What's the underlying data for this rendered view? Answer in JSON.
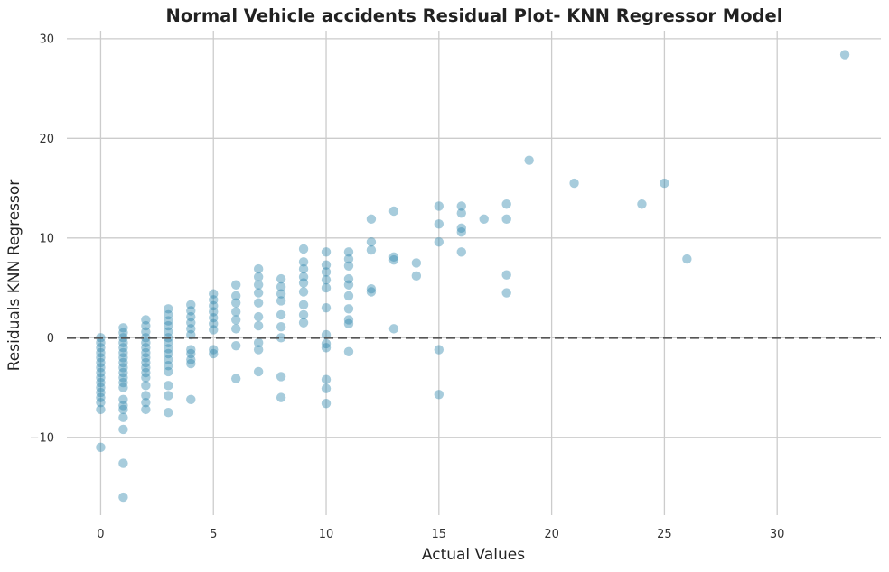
{
  "chart_data": {
    "type": "scatter",
    "title": "Normal Vehicle accidents Residual Plot- KNN Regressor Model",
    "xlabel": "Actual Values",
    "ylabel": "Residuals KNN Regressor",
    "xlim": [
      -1.5,
      34.6
    ],
    "ylim": [
      -17.8,
      30.8
    ],
    "x_ticks": [
      0,
      5,
      10,
      15,
      20,
      25,
      30
    ],
    "y_ticks": [
      -10,
      0,
      10,
      20,
      30
    ],
    "x_tick_labels": [
      "0",
      "5",
      "10",
      "15",
      "20",
      "25",
      "30"
    ],
    "y_tick_labels": [
      "−10",
      "0",
      "10",
      "20",
      "30"
    ],
    "grid": true,
    "reference_line": {
      "y": 0,
      "style": "dashed",
      "color": "#555555"
    },
    "point_color": "#2e86ab",
    "point_opacity": 0.42,
    "series": [
      {
        "points": [
          [
            0,
            0
          ],
          [
            0,
            -0.5
          ],
          [
            0,
            -1
          ],
          [
            0,
            -1.5
          ],
          [
            0,
            -2
          ],
          [
            0,
            -2.5
          ],
          [
            0,
            -3
          ],
          [
            0,
            -3.5
          ],
          [
            0,
            -4
          ],
          [
            0,
            -4.5
          ],
          [
            0,
            -5
          ],
          [
            0,
            -5.5
          ],
          [
            0,
            -6
          ],
          [
            0,
            -6.5
          ],
          [
            0,
            -7.2
          ],
          [
            0,
            -11
          ],
          [
            1,
            1
          ],
          [
            1,
            0.5
          ],
          [
            1,
            0
          ],
          [
            1,
            -0.5
          ],
          [
            1,
            -1
          ],
          [
            1,
            -1.5
          ],
          [
            1,
            -2
          ],
          [
            1,
            -2.5
          ],
          [
            1,
            -3
          ],
          [
            1,
            -3.5
          ],
          [
            1,
            -4
          ],
          [
            1,
            -4.5
          ],
          [
            1,
            -5
          ],
          [
            1,
            -6.2
          ],
          [
            1,
            -6.8
          ],
          [
            1,
            -7.2
          ],
          [
            1,
            -8
          ],
          [
            1,
            -9.2
          ],
          [
            1,
            -12.6
          ],
          [
            1,
            -16
          ],
          [
            2,
            1.8
          ],
          [
            2,
            1.2
          ],
          [
            2,
            0.6
          ],
          [
            2,
            0
          ],
          [
            2,
            -0.5
          ],
          [
            2,
            -1
          ],
          [
            2,
            -1.5
          ],
          [
            2,
            -2
          ],
          [
            2,
            -2.5
          ],
          [
            2,
            -3
          ],
          [
            2,
            -3.5
          ],
          [
            2,
            -4
          ],
          [
            2,
            -4.8
          ],
          [
            2,
            -5.8
          ],
          [
            2,
            -6.5
          ],
          [
            2,
            -7.2
          ],
          [
            3,
            2.9
          ],
          [
            3,
            2.3
          ],
          [
            3,
            1.7
          ],
          [
            3,
            1.2
          ],
          [
            3,
            0.6
          ],
          [
            3,
            0
          ],
          [
            3,
            -0.5
          ],
          [
            3,
            -1.1
          ],
          [
            3,
            -1.6
          ],
          [
            3,
            -2.2
          ],
          [
            3,
            -2.8
          ],
          [
            3,
            -3.4
          ],
          [
            3,
            -4.8
          ],
          [
            3,
            -5.8
          ],
          [
            3,
            -7.5
          ],
          [
            4,
            3.3
          ],
          [
            4,
            2.7
          ],
          [
            4,
            2.1
          ],
          [
            4,
            1.5
          ],
          [
            4,
            0.9
          ],
          [
            4,
            0.3
          ],
          [
            4,
            -1.2
          ],
          [
            4,
            -1.6
          ],
          [
            4,
            -2.2
          ],
          [
            4,
            -2.6
          ],
          [
            4,
            -6.2
          ],
          [
            5,
            4.4
          ],
          [
            5,
            3.8
          ],
          [
            5,
            3.2
          ],
          [
            5,
            2.6
          ],
          [
            5,
            2
          ],
          [
            5,
            1.4
          ],
          [
            5,
            0.8
          ],
          [
            5,
            -1.2
          ],
          [
            5,
            -1.6
          ],
          [
            6,
            5.3
          ],
          [
            6,
            4.2
          ],
          [
            6,
            3.5
          ],
          [
            6,
            2.6
          ],
          [
            6,
            1.8
          ],
          [
            6,
            0.9
          ],
          [
            6,
            -0.8
          ],
          [
            6,
            -4.1
          ],
          [
            7,
            6.9
          ],
          [
            7,
            6.1
          ],
          [
            7,
            5.3
          ],
          [
            7,
            4.5
          ],
          [
            7,
            3.5
          ],
          [
            7,
            2.1
          ],
          [
            7,
            1.2
          ],
          [
            7,
            -0.5
          ],
          [
            7,
            -1.2
          ],
          [
            7,
            -3.4
          ],
          [
            8,
            5.9
          ],
          [
            8,
            5.1
          ],
          [
            8,
            4.4
          ],
          [
            8,
            3.7
          ],
          [
            8,
            2.3
          ],
          [
            8,
            1.1
          ],
          [
            8,
            0
          ],
          [
            8,
            -3.9
          ],
          [
            8,
            -6
          ],
          [
            9,
            8.9
          ],
          [
            9,
            7.6
          ],
          [
            9,
            6.9
          ],
          [
            9,
            6.1
          ],
          [
            9,
            5.5
          ],
          [
            9,
            4.6
          ],
          [
            9,
            3.3
          ],
          [
            9,
            2.3
          ],
          [
            9,
            1.5
          ],
          [
            10,
            8.6
          ],
          [
            10,
            7.3
          ],
          [
            10,
            6.6
          ],
          [
            10,
            5.8
          ],
          [
            10,
            5
          ],
          [
            10,
            3
          ],
          [
            10,
            0.3
          ],
          [
            10,
            -0.6
          ],
          [
            10,
            -1
          ],
          [
            10,
            -4.2
          ],
          [
            10,
            -5.1
          ],
          [
            10,
            -6.6
          ],
          [
            11,
            8.6
          ],
          [
            11,
            7.9
          ],
          [
            11,
            7.2
          ],
          [
            11,
            5.9
          ],
          [
            11,
            5.3
          ],
          [
            11,
            4.2
          ],
          [
            11,
            2.9
          ],
          [
            11,
            1.8
          ],
          [
            11,
            1.4
          ],
          [
            11,
            -1.4
          ],
          [
            12,
            11.9
          ],
          [
            12,
            9.6
          ],
          [
            12,
            8.8
          ],
          [
            12,
            4.9
          ],
          [
            12,
            4.6
          ],
          [
            13,
            12.7
          ],
          [
            13,
            8.1
          ],
          [
            13,
            7.8
          ],
          [
            13,
            0.9
          ],
          [
            14,
            7.5
          ],
          [
            14,
            6.2
          ],
          [
            15,
            13.2
          ],
          [
            15,
            11.4
          ],
          [
            15,
            9.6
          ],
          [
            15,
            -1.2
          ],
          [
            15,
            -5.7
          ],
          [
            16,
            13.2
          ],
          [
            16,
            12.5
          ],
          [
            16,
            11
          ],
          [
            16,
            10.6
          ],
          [
            16,
            8.6
          ],
          [
            17,
            11.9
          ],
          [
            18,
            13.4
          ],
          [
            18,
            11.9
          ],
          [
            18,
            6.3
          ],
          [
            18,
            4.5
          ],
          [
            19,
            17.8
          ],
          [
            21,
            15.5
          ],
          [
            24,
            13.4
          ],
          [
            25,
            15.5
          ],
          [
            26,
            7.9
          ],
          [
            33,
            28.4
          ]
        ]
      }
    ]
  }
}
